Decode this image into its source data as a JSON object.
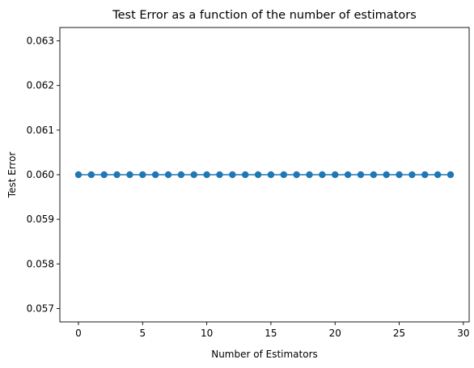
{
  "chart_data": {
    "type": "line",
    "title": "Test Error as a function of the number of estimators",
    "xlabel": "Number of Estimators",
    "ylabel": "Test Error",
    "xlim": [
      -1.45,
      30.45
    ],
    "ylim": [
      0.0567,
      0.0633
    ],
    "xticks": [
      0,
      5,
      10,
      15,
      20,
      25,
      30
    ],
    "xtick_labels": [
      "0",
      "5",
      "10",
      "15",
      "20",
      "25",
      "30"
    ],
    "yticks": [
      0.057,
      0.058,
      0.059,
      0.06,
      0.061,
      0.062,
      0.063
    ],
    "ytick_labels": [
      "0.057",
      "0.058",
      "0.059",
      "0.060",
      "0.061",
      "0.062",
      "0.063"
    ],
    "grid": false,
    "series": [
      {
        "color": "#1f77b4",
        "marker": "circle",
        "x": [
          0,
          1,
          2,
          3,
          4,
          5,
          6,
          7,
          8,
          9,
          10,
          11,
          12,
          13,
          14,
          15,
          16,
          17,
          18,
          19,
          20,
          21,
          22,
          23,
          24,
          25,
          26,
          27,
          28,
          29
        ],
        "values": [
          0.06,
          0.06,
          0.06,
          0.06,
          0.06,
          0.06,
          0.06,
          0.06,
          0.06,
          0.06,
          0.06,
          0.06,
          0.06,
          0.06,
          0.06,
          0.06,
          0.06,
          0.06,
          0.06,
          0.06,
          0.06,
          0.06,
          0.06,
          0.06,
          0.06,
          0.06,
          0.06,
          0.06,
          0.06,
          0.06
        ]
      }
    ]
  }
}
